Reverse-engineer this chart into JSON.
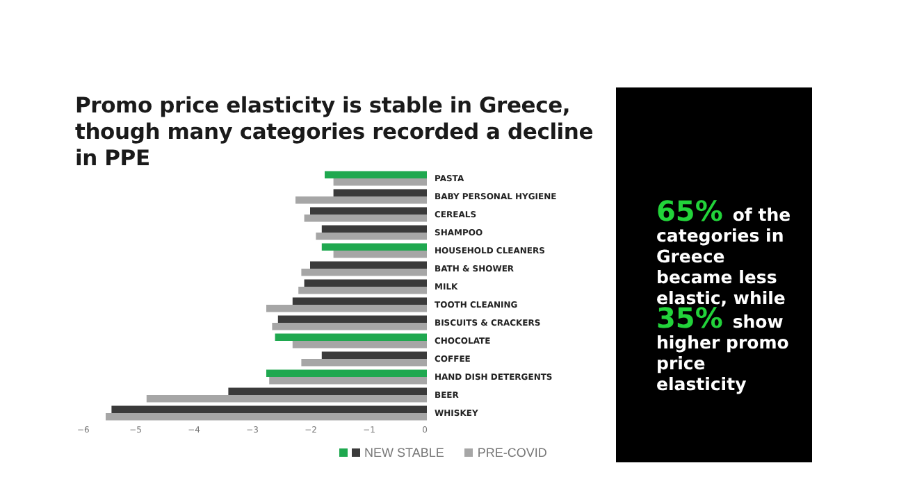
{
  "chart_data": {
    "type": "bar",
    "orientation": "horizontal",
    "title": "Promo price elasticity is stable in Greece, though many categories recorded a decline in PPE",
    "categories": [
      "PASTA",
      "BABY PERSONAL HYGIENE",
      "CEREALS",
      "SHAMPOO",
      "HOUSEHOLD CLEANERS",
      "BATH & SHOWER",
      "MILK",
      "TOOTH CLEANING",
      "BISCUITS & CRACKERS",
      "CHOCOLATE",
      "COFFEE",
      "HAND DISH DETERGENTS",
      "BEER",
      "WHISKEY"
    ],
    "series": [
      {
        "name": "NEW STABLE",
        "colors": [
          "#1fa84f",
          "#3a3a3a",
          "#3a3a3a",
          "#3a3a3a",
          "#1fa84f",
          "#3a3a3a",
          "#3a3a3a",
          "#3a3a3a",
          "#3a3a3a",
          "#1fa84f",
          "#3a3a3a",
          "#1fa84f",
          "#3a3a3a",
          "#3a3a3a"
        ],
        "values": [
          -1.75,
          -1.6,
          -2.0,
          -1.8,
          -1.8,
          -2.0,
          -2.1,
          -2.3,
          -2.55,
          -2.6,
          -1.8,
          -2.75,
          -3.4,
          -5.4
        ]
      },
      {
        "name": "PRE-COVID",
        "color": "#a6a6a6",
        "values": [
          -1.6,
          -2.25,
          -2.1,
          -1.9,
          -1.6,
          -2.15,
          -2.2,
          -2.75,
          -2.65,
          -2.3,
          -2.15,
          -2.7,
          -4.8,
          -5.5
        ]
      }
    ],
    "xlim": [
      -6,
      0
    ],
    "xticks": [
      -6,
      -5,
      -4,
      -3,
      -2,
      -1,
      0
    ],
    "legend": "bottom",
    "grid": false,
    "annotations": [
      "65%",
      "of the categories in Greece became less elastic, while",
      "35%",
      "show higher promo price elasticity"
    ]
  }
}
